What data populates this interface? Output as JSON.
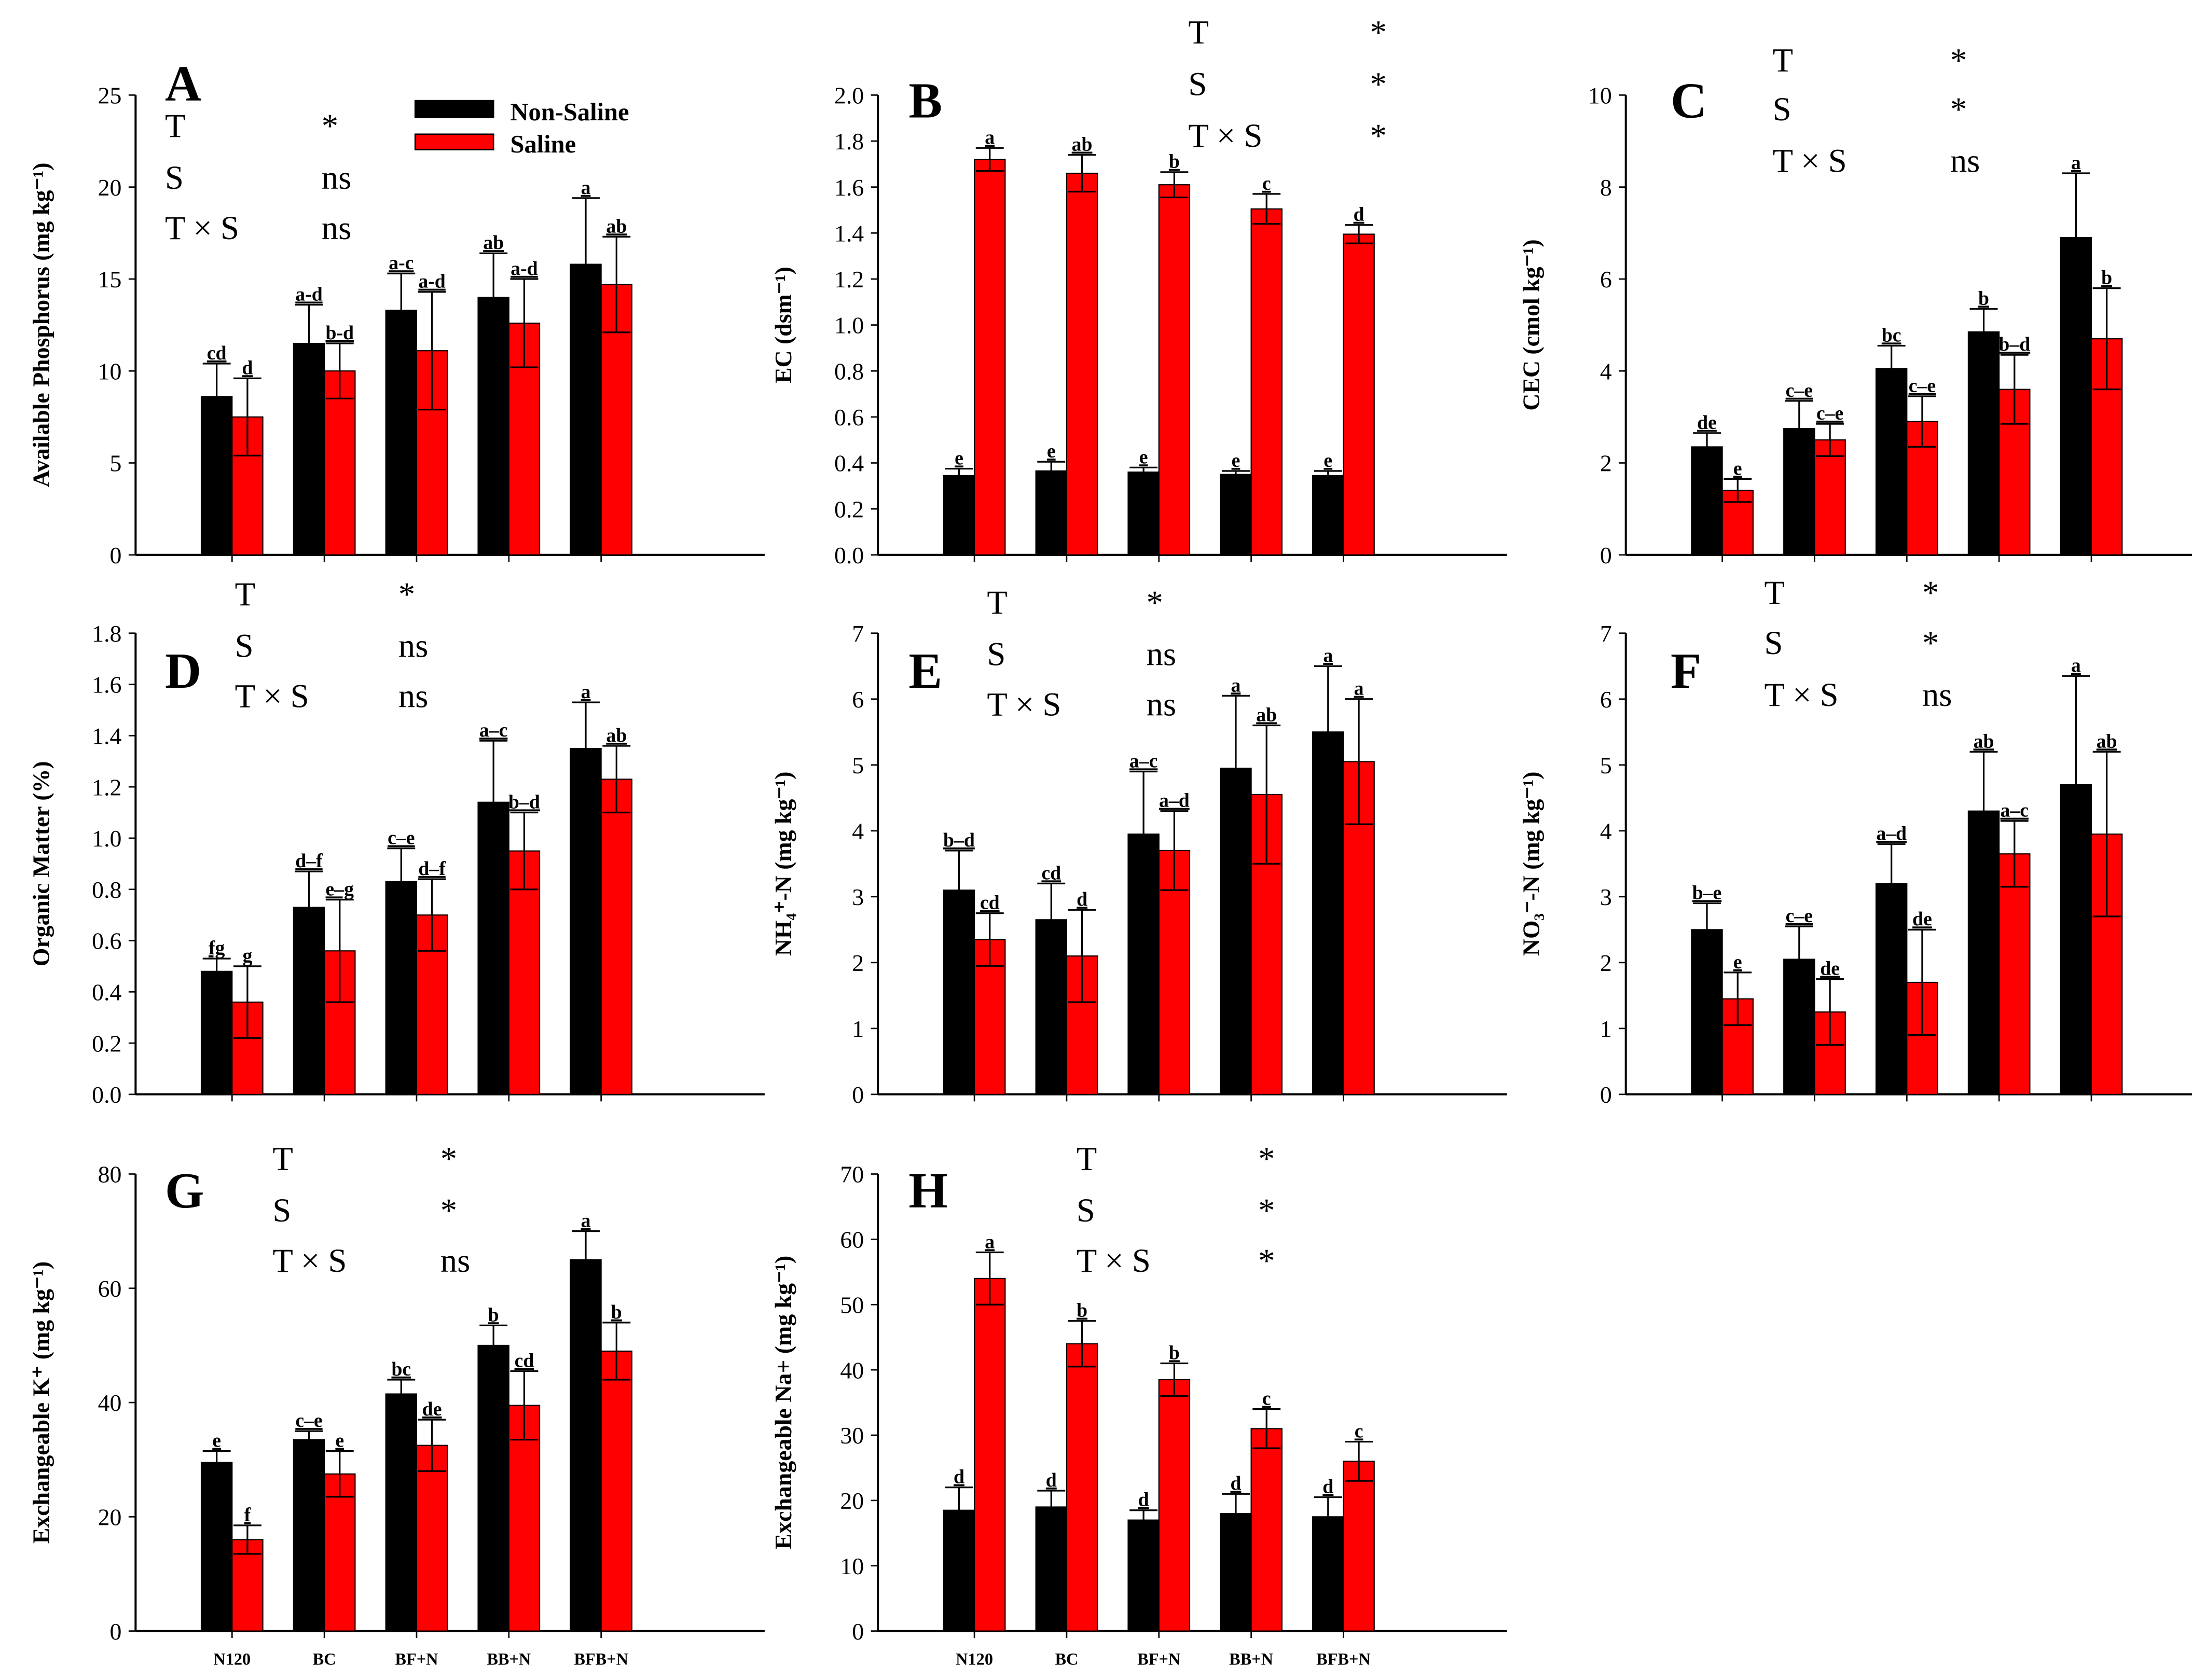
{
  "colors": {
    "non_saline": "#000000",
    "saline": "#ff0000"
  },
  "legend": {
    "non_saline": "Non-Saline",
    "saline": "Saline"
  },
  "chart_data": [
    {
      "panel": "A",
      "type": "bar",
      "ylabel": "Available Phosphorus (mg kg⁻¹)",
      "ylim": [
        0,
        25
      ],
      "yticks": [
        "0",
        "5",
        "10",
        "15",
        "20",
        "25"
      ],
      "categories": [
        "N120",
        "BC",
        "BF+N",
        "BB+N",
        "BFB+N"
      ],
      "series": [
        {
          "name": "Non-Saline",
          "values": [
            8.6,
            11.5,
            13.3,
            14.0,
            15.8
          ],
          "errors": [
            1.8,
            2.1,
            2.0,
            2.4,
            3.6
          ],
          "letters": [
            "cd",
            "a-d",
            "a-c",
            "ab",
            "a"
          ]
        },
        {
          "name": "Saline",
          "values": [
            7.5,
            10.0,
            11.1,
            12.6,
            14.7
          ],
          "errors": [
            2.1,
            1.5,
            3.2,
            2.4,
            2.6
          ],
          "letters": [
            "d",
            "b-d",
            "a-d",
            "a-d",
            "ab"
          ]
        }
      ],
      "stats": [
        {
          "term": "T",
          "sig": "*"
        },
        {
          "term": "S",
          "sig": "ns"
        },
        {
          "term": "T × S",
          "sig": "ns"
        }
      ]
    },
    {
      "panel": "B",
      "type": "bar",
      "ylabel": "EC (dsm⁻¹)",
      "ylim": [
        0,
        2.0
      ],
      "yticks": [
        "0.0",
        "0.2",
        "0.4",
        "0.6",
        "0.8",
        "1.0",
        "1.2",
        "1.4",
        "1.6",
        "1.8",
        "2.0"
      ],
      "categories": [
        "N120",
        "BC",
        "BF+N",
        "BB+N",
        "BFB+N"
      ],
      "series": [
        {
          "name": "Non-Saline",
          "values": [
            0.345,
            0.365,
            0.36,
            0.35,
            0.345
          ],
          "errors": [
            0.03,
            0.04,
            0.02,
            0.015,
            0.02
          ],
          "letters": [
            "e",
            "e",
            "e",
            "e",
            "e"
          ]
        },
        {
          "name": "Saline",
          "values": [
            1.72,
            1.66,
            1.61,
            1.505,
            1.395
          ],
          "errors": [
            0.05,
            0.08,
            0.055,
            0.065,
            0.04
          ],
          "letters": [
            "a",
            "ab",
            "b",
            "c",
            "d"
          ]
        }
      ],
      "stats": [
        {
          "term": "T",
          "sig": "*"
        },
        {
          "term": "S",
          "sig": "*"
        },
        {
          "term": "T × S",
          "sig": "*"
        }
      ]
    },
    {
      "panel": "C",
      "type": "bar",
      "ylabel": "CEC (cmol kg⁻¹)",
      "ylim": [
        0,
        10
      ],
      "yticks": [
        "0",
        "2",
        "4",
        "6",
        "8",
        "10"
      ],
      "categories": [
        "N120",
        "BC",
        "BF+N",
        "BB+N",
        "BFB+N"
      ],
      "series": [
        {
          "name": "Non-Saline",
          "values": [
            2.35,
            2.75,
            4.05,
            4.85,
            6.9
          ],
          "errors": [
            0.3,
            0.6,
            0.5,
            0.5,
            1.4
          ],
          "letters": [
            "de",
            "c–e",
            "bc",
            "b",
            "a"
          ]
        },
        {
          "name": "Saline",
          "values": [
            1.4,
            2.5,
            2.9,
            3.6,
            4.7
          ],
          "errors": [
            0.25,
            0.35,
            0.55,
            0.75,
            1.1
          ],
          "letters": [
            "e",
            "c–e",
            "c–e",
            "b–d",
            "b"
          ]
        }
      ],
      "stats": [
        {
          "term": "T",
          "sig": "*"
        },
        {
          "term": "S",
          "sig": "*"
        },
        {
          "term": "T × S",
          "sig": "ns"
        }
      ]
    },
    {
      "panel": "D",
      "type": "bar",
      "ylabel": "Organic Matter (%)",
      "ylim": [
        0,
        1.8
      ],
      "yticks": [
        "0.0",
        "0.2",
        "0.4",
        "0.6",
        "0.8",
        "1.0",
        "1.2",
        "1.4",
        "1.6",
        "1.8"
      ],
      "categories": [
        "N120",
        "BC",
        "BF+N",
        "BB+N",
        "BFB+N"
      ],
      "series": [
        {
          "name": "Non-Saline",
          "values": [
            0.48,
            0.73,
            0.83,
            1.14,
            1.35
          ],
          "errors": [
            0.05,
            0.14,
            0.13,
            0.24,
            0.18
          ],
          "letters": [
            "fg",
            "d–f",
            "c–e",
            "a–c",
            "a"
          ]
        },
        {
          "name": "Saline",
          "values": [
            0.36,
            0.56,
            0.7,
            0.95,
            1.23
          ],
          "errors": [
            0.14,
            0.2,
            0.14,
            0.15,
            0.13
          ],
          "letters": [
            "g",
            "e–g",
            "d–f",
            "b–d",
            "ab"
          ]
        }
      ],
      "stats": [
        {
          "term": "T",
          "sig": "*"
        },
        {
          "term": "S",
          "sig": "ns"
        },
        {
          "term": "T × S",
          "sig": "ns"
        }
      ]
    },
    {
      "panel": "E",
      "type": "bar",
      "ylabel": "NH₄⁺-N (mg kg⁻¹)",
      "ylim": [
        0,
        7
      ],
      "yticks": [
        "0",
        "1",
        "2",
        "3",
        "4",
        "5",
        "6",
        "7"
      ],
      "categories": [
        "N120",
        "BC",
        "BF+N",
        "BB+N",
        "BFB+N"
      ],
      "series": [
        {
          "name": "Non-Saline",
          "values": [
            3.1,
            2.65,
            3.95,
            4.95,
            5.5
          ],
          "errors": [
            0.6,
            0.55,
            0.95,
            1.1,
            1.0
          ],
          "letters": [
            "b–d",
            "cd",
            "a–c",
            "a",
            "a"
          ]
        },
        {
          "name": "Saline",
          "values": [
            2.35,
            2.1,
            3.7,
            4.55,
            5.05
          ],
          "errors": [
            0.4,
            0.7,
            0.6,
            1.05,
            0.95
          ],
          "letters": [
            "cd",
            "d",
            "a–d",
            "ab",
            "a"
          ]
        }
      ],
      "stats": [
        {
          "term": "T",
          "sig": "*"
        },
        {
          "term": "S",
          "sig": "ns"
        },
        {
          "term": "T × S",
          "sig": "ns"
        }
      ]
    },
    {
      "panel": "F",
      "type": "bar",
      "ylabel": "NO₃⁻-N (mg kg⁻¹)",
      "ylim": [
        0,
        7
      ],
      "yticks": [
        "0",
        "1",
        "2",
        "3",
        "4",
        "5",
        "6",
        "7"
      ],
      "categories": [
        "N120",
        "BC",
        "BF+N",
        "BB+N",
        "BFB+N"
      ],
      "series": [
        {
          "name": "Non-Saline",
          "values": [
            2.5,
            2.05,
            3.2,
            4.3,
            4.7
          ],
          "errors": [
            0.4,
            0.5,
            0.6,
            0.9,
            1.65
          ],
          "letters": [
            "b–e",
            "c–e",
            "a–d",
            "ab",
            "a"
          ]
        },
        {
          "name": "Saline",
          "values": [
            1.45,
            1.25,
            1.7,
            3.65,
            3.95
          ],
          "errors": [
            0.4,
            0.5,
            0.8,
            0.5,
            1.25
          ],
          "letters": [
            "e",
            "de",
            "de",
            "a–c",
            "ab"
          ]
        }
      ],
      "stats": [
        {
          "term": "T",
          "sig": "*"
        },
        {
          "term": "S",
          "sig": "*"
        },
        {
          "term": "T × S",
          "sig": "ns"
        }
      ]
    },
    {
      "panel": "G",
      "type": "bar",
      "ylabel": "Exchangeable K⁺ (mg kg⁻¹)",
      "ylim": [
        0,
        80
      ],
      "yticks": [
        "0",
        "20",
        "40",
        "60",
        "80"
      ],
      "categories": [
        "N120",
        "BC",
        "BF+N",
        "BB+N",
        "BFB+N"
      ],
      "series": [
        {
          "name": "Non-Saline",
          "values": [
            29.5,
            33.5,
            41.5,
            50,
            65
          ],
          "errors": [
            2,
            1.5,
            2.5,
            3.5,
            5
          ],
          "letters": [
            "e",
            "c–e",
            "bc",
            "b",
            "a"
          ]
        },
        {
          "name": "Saline",
          "values": [
            16,
            27.5,
            32.5,
            39.5,
            49
          ],
          "errors": [
            2.5,
            4,
            4.5,
            6,
            5
          ],
          "letters": [
            "f",
            "e",
            "de",
            "cd",
            "b"
          ]
        }
      ],
      "stats": [
        {
          "term": "T",
          "sig": "*"
        },
        {
          "term": "S",
          "sig": "*"
        },
        {
          "term": "T × S",
          "sig": "ns"
        }
      ]
    },
    {
      "panel": "H",
      "type": "bar",
      "ylabel": "Exchangeable Na+ (mg kg⁻¹)",
      "ylim": [
        0,
        70
      ],
      "yticks": [
        "0",
        "10",
        "20",
        "30",
        "40",
        "50",
        "60",
        "70"
      ],
      "categories": [
        "N120",
        "BC",
        "BF+N",
        "BB+N",
        "BFB+N"
      ],
      "series": [
        {
          "name": "Non-Saline",
          "values": [
            18.5,
            19,
            17,
            18,
            17.5
          ],
          "errors": [
            3.5,
            2.5,
            1.5,
            3,
            3
          ],
          "letters": [
            "d",
            "d",
            "d",
            "d",
            "d"
          ]
        },
        {
          "name": "Saline",
          "values": [
            54,
            44,
            38.5,
            31,
            26
          ],
          "errors": [
            4,
            3.5,
            2.5,
            3,
            3
          ],
          "letters": [
            "a",
            "b",
            "b",
            "c",
            "c"
          ]
        }
      ],
      "stats": [
        {
          "term": "T",
          "sig": "*"
        },
        {
          "term": "S",
          "sig": "*"
        },
        {
          "term": "T × S",
          "sig": "*"
        }
      ]
    }
  ]
}
